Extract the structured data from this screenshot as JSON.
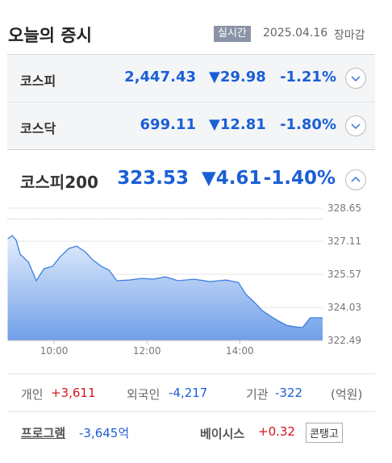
{
  "header": {
    "title": "오늘의 증시",
    "badge": "실시간",
    "date": "2025.04.16",
    "status": "장마감"
  },
  "indices": [
    {
      "name": "코스피",
      "value": "2,447.43",
      "change": "▼29.98",
      "rate": "-1.21%"
    },
    {
      "name": "코스닥",
      "value": "699.11",
      "change": "▼12.81",
      "rate": "-1.80%"
    },
    {
      "name": "코스피200",
      "value": "323.53",
      "change": "▼4.61",
      "rate": "-1.40%"
    }
  ],
  "chart_data": {
    "type": "line",
    "x": [
      "09:00",
      "09:06",
      "09:11",
      "09:16",
      "09:27",
      "09:37",
      "09:47",
      "09:58",
      "10:08",
      "10:19",
      "10:29",
      "10:40",
      "10:50",
      "11:01",
      "11:11",
      "11:21",
      "11:37",
      "11:53",
      "12:08",
      "12:24",
      "12:40",
      "13:01",
      "13:21",
      "13:42",
      "13:58",
      "14:08",
      "14:19",
      "14:29",
      "14:40",
      "14:50",
      "15:00",
      "15:11",
      "15:21",
      "15:31",
      "15:47"
    ],
    "series": [
      {
        "color": "#3d7fe0",
        "values": [
          327.22,
          327.37,
          327.15,
          326.51,
          326.13,
          325.27,
          325.83,
          325.94,
          326.39,
          326.77,
          326.88,
          326.62,
          326.24,
          325.94,
          325.76,
          325.27,
          325.3,
          325.38,
          325.34,
          325.45,
          325.27,
          325.34,
          325.23,
          325.3,
          325.19,
          324.63,
          324.25,
          323.88,
          323.61,
          323.39,
          323.2,
          323.12,
          323.09,
          323.54,
          323.54
        ]
      }
    ],
    "xlim": [
      "09:00",
      "15:47"
    ],
    "xticks": [
      "10:00",
      "12:00",
      "14:00"
    ],
    "ylim": [
      322.49,
      328.65
    ],
    "yticks": [
      328.65,
      327.11,
      325.57,
      324.03,
      322.49
    ],
    "reference_line": 328.14,
    "grid": true
  },
  "investors": [
    {
      "label": "개인",
      "value": "+3,611"
    },
    {
      "label": "외국인",
      "value": "-4,217"
    },
    {
      "label": "기관",
      "value": "-322"
    }
  ],
  "unit": "(억원)",
  "program": {
    "label": "프로그램",
    "value": "-3,645억"
  },
  "basis": {
    "label": "베이시스",
    "value": "+0.32",
    "status": "콘탱고"
  }
}
